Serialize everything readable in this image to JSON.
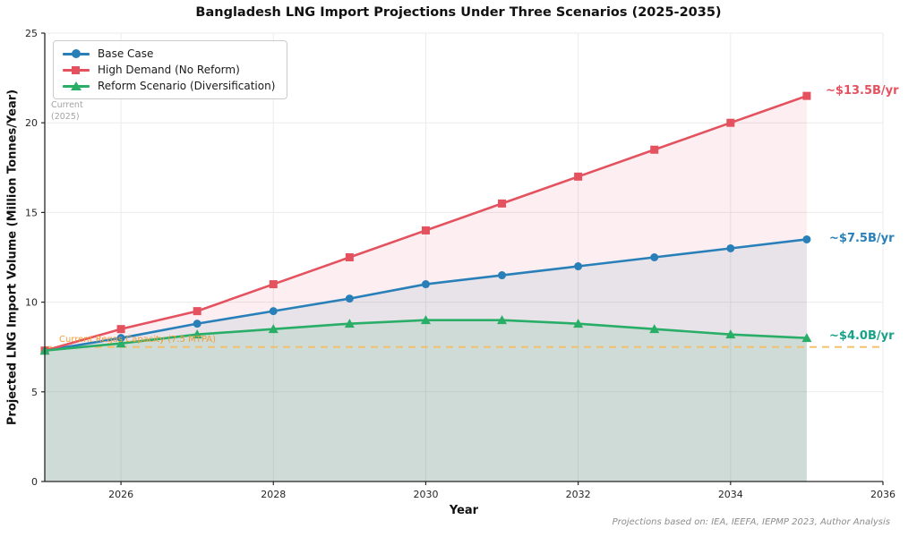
{
  "title": "Bangladesh LNG Import Projections Under Three Scenarios (2025-2035)",
  "footer": "Projections based on: IEA, IEEFA, IEPMP 2023, Author Analysis",
  "annotations": {
    "current_line1": "Current",
    "current_line2": "(2025)"
  },
  "chart_data": {
    "type": "line",
    "title": "Bangladesh LNG Import Projections Under Three Scenarios (2025-2035)",
    "xlabel": "Year",
    "ylabel": "Projected LNG Import Volume (Million Tonnes/Year)",
    "x": [
      2025,
      2026,
      2027,
      2028,
      2029,
      2030,
      2031,
      2032,
      2033,
      2034,
      2035
    ],
    "xlim": [
      2025,
      2036
    ],
    "ylim": [
      0,
      25
    ],
    "x_ticks": [
      2026,
      2028,
      2030,
      2032,
      2034,
      2036
    ],
    "y_ticks": [
      0,
      5,
      10,
      15,
      20,
      25
    ],
    "grid": true,
    "legend_position": "upper left",
    "series": [
      {
        "name": "Base Case",
        "marker": "circle",
        "color": "#2980b9",
        "fill_alpha": 0.11,
        "values": [
          7.3,
          8.0,
          8.8,
          9.5,
          10.2,
          11.0,
          11.5,
          12.0,
          12.5,
          13.0,
          13.5
        ],
        "end_label": "~$7.5B/yr",
        "end_label_color": "#2980b9"
      },
      {
        "name": "High Demand (No Reform)",
        "marker": "square",
        "color": "#e4525f",
        "fill_alpha": 0.09,
        "values": [
          7.3,
          8.5,
          9.5,
          11.0,
          12.5,
          14.0,
          15.5,
          17.0,
          18.5,
          20.0,
          21.5
        ],
        "end_label": "~$13.5B/yr",
        "end_label_color": "#e4525f"
      },
      {
        "name": "Reform Scenario (Diversification)",
        "marker": "triangle",
        "color": "#29ae68",
        "fill_alpha": 0.13,
        "values": [
          7.3,
          7.7,
          8.2,
          8.5,
          8.8,
          9.0,
          9.0,
          8.8,
          8.5,
          8.2,
          8.0
        ],
        "end_label": "~$4.0B/yr",
        "end_label_color": "#17a289"
      }
    ],
    "reference_line": {
      "y": 7.5,
      "label": "Current Regas Capacity (7.5 MTPA)",
      "color": "#f4bd68",
      "label_color": "#ef9f3a",
      "style": "dashed"
    },
    "annotations": [
      {
        "text": "Current (2025)",
        "color": "#a3a3a3"
      },
      {
        "text": "~$13.5B/yr",
        "color": "#e4525f"
      },
      {
        "text": "~$7.5B/yr",
        "color": "#2980b9"
      },
      {
        "text": "~$4.0B/yr",
        "color": "#17a289"
      }
    ]
  }
}
